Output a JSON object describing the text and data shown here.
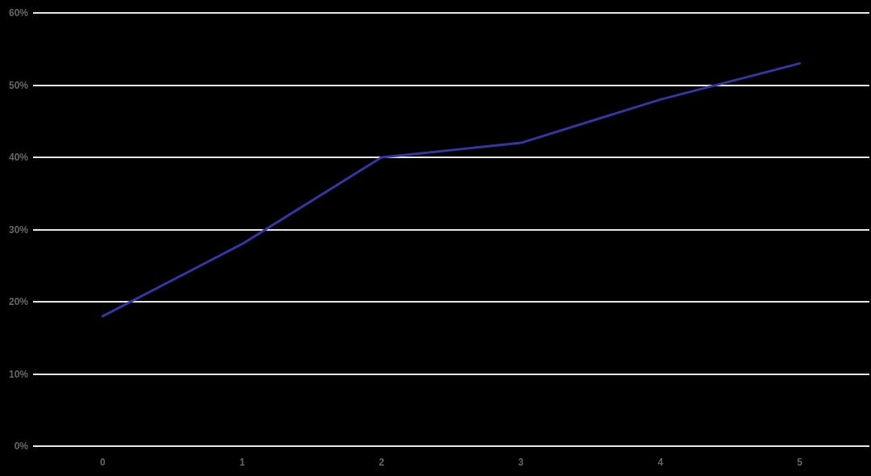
{
  "chart_data": {
    "type": "line",
    "categories": [
      "0",
      "1",
      "2",
      "3",
      "4",
      "5"
    ],
    "series": [
      {
        "color": "#3636a2",
        "values": [
          18,
          28,
          40,
          42,
          48,
          53
        ]
      }
    ],
    "ylim": [
      0,
      60
    ],
    "yticks": [
      {
        "value": 0,
        "label": "0%"
      },
      {
        "value": 10,
        "label": "10%"
      },
      {
        "value": 20,
        "label": "20%"
      },
      {
        "value": 30,
        "label": "30%"
      },
      {
        "value": 40,
        "label": "40%"
      },
      {
        "value": 50,
        "label": "50%"
      },
      {
        "value": 60,
        "label": "60%"
      }
    ],
    "grid": "y",
    "marker": "none",
    "line_style": "solid"
  }
}
